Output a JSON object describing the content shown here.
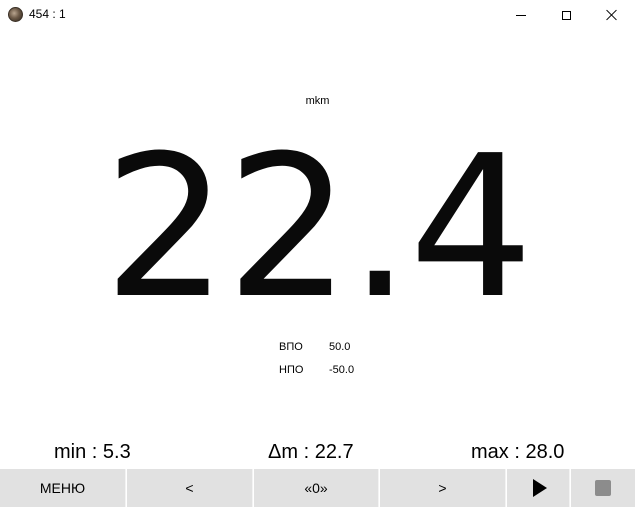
{
  "window": {
    "title": "454 : 1",
    "icon": "app-logo-icon"
  },
  "measurement": {
    "unit": "mkm",
    "value": "22.4"
  },
  "limits": {
    "upper_label": "ВПО",
    "upper_value": "50.0",
    "lower_label": "НПО",
    "lower_value": "-50.0"
  },
  "stats": {
    "min": "min : 5.3",
    "delta": "Δm : 22.7",
    "max": "max : 28.0"
  },
  "toolbar": {
    "menu_label": "МЕНЮ",
    "prev_label": "<",
    "zero_label": "«0»",
    "next_label": ">",
    "play_icon": "play-icon",
    "stop_icon": "stop-icon"
  }
}
